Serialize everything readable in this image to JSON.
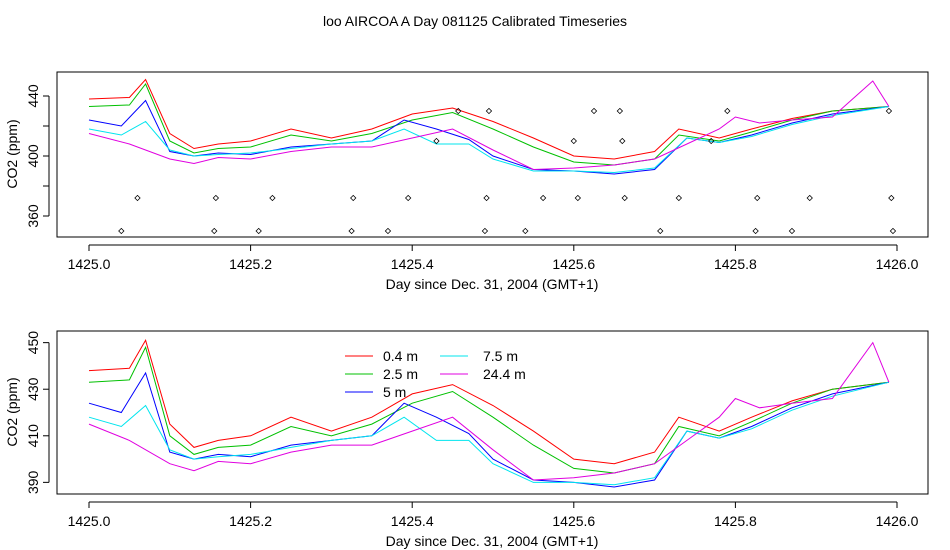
{
  "title": "loo AIRCOA A  Day 081125  Calibrated Timeseries",
  "series_colors": {
    "0.4 m": "#ff0000",
    "2.5 m": "#00c000",
    "5 m": "#0000ff",
    "7.5 m": "#00e5ee",
    "24.4 m": "#e000e0"
  },
  "chart_data": [
    {
      "type": "line",
      "xlabel": "Day since Dec. 31, 2004 (GMT+1)",
      "ylabel": "CO2 (ppm)",
      "xlim": [
        1425.0,
        1426.0
      ],
      "ylim": [
        346,
        456
      ],
      "x_ticks": [
        1425.0,
        1425.2,
        1425.4,
        1425.6,
        1425.8,
        1426.0
      ],
      "x_tick_labels": [
        "1425.0",
        "1425.2",
        "1425.4",
        "1425.6",
        "1425.8",
        "1426.0"
      ],
      "y_ticks": [
        360,
        380,
        400,
        420,
        440
      ],
      "y_tick_labels": [
        "360",
        "",
        "400",
        "",
        "440"
      ],
      "grid": false,
      "legend": "none",
      "series": [
        {
          "name": "0.4 m",
          "x": [
            1425.0,
            1425.05,
            1425.07,
            1425.1,
            1425.13,
            1425.16,
            1425.2,
            1425.25,
            1425.3,
            1425.35,
            1425.4,
            1425.45,
            1425.5,
            1425.55,
            1425.6,
            1425.65,
            1425.7,
            1425.73,
            1425.78,
            1425.82,
            1425.87,
            1425.92,
            1425.99
          ],
          "y": [
            438,
            439,
            451,
            415,
            405,
            408,
            410,
            418,
            412,
            418,
            428,
            432,
            423,
            412,
            400,
            398,
            403,
            418,
            412,
            418,
            425,
            430,
            433
          ]
        },
        {
          "name": "2.5 m",
          "x": [
            1425.0,
            1425.05,
            1425.07,
            1425.1,
            1425.13,
            1425.16,
            1425.2,
            1425.25,
            1425.3,
            1425.35,
            1425.4,
            1425.45,
            1425.5,
            1425.55,
            1425.6,
            1425.65,
            1425.7,
            1425.73,
            1425.78,
            1425.82,
            1425.87,
            1425.92,
            1425.99
          ],
          "y": [
            433,
            434,
            448,
            410,
            402,
            405,
            406,
            414,
            410,
            415,
            424,
            429,
            418,
            406,
            396,
            394,
            398,
            414,
            410,
            416,
            424,
            430,
            433
          ]
        },
        {
          "name": "5 m",
          "x": [
            1425.0,
            1425.04,
            1425.07,
            1425.1,
            1425.13,
            1425.16,
            1425.2,
            1425.25,
            1425.3,
            1425.35,
            1425.39,
            1425.43,
            1425.47,
            1425.5,
            1425.55,
            1425.6,
            1425.65,
            1425.7,
            1425.74,
            1425.78,
            1425.82,
            1425.87,
            1425.92,
            1425.99
          ],
          "y": [
            424,
            420,
            437,
            403,
            400,
            402,
            401,
            406,
            408,
            410,
            424,
            418,
            411,
            400,
            391,
            390,
            388,
            391,
            412,
            409,
            414,
            422,
            428,
            433
          ]
        },
        {
          "name": "7.5 m",
          "x": [
            1425.0,
            1425.04,
            1425.07,
            1425.1,
            1425.13,
            1425.16,
            1425.2,
            1425.25,
            1425.3,
            1425.35,
            1425.39,
            1425.43,
            1425.47,
            1425.5,
            1425.55,
            1425.6,
            1425.65,
            1425.7,
            1425.74,
            1425.78,
            1425.82,
            1425.87,
            1425.92,
            1425.99
          ],
          "y": [
            418,
            414,
            423,
            404,
            400,
            401,
            402,
            405,
            408,
            410,
            418,
            408,
            408,
            398,
            390,
            390,
            389,
            392,
            412,
            409,
            413,
            421,
            427,
            433
          ]
        },
        {
          "name": "24.4 m",
          "x": [
            1425.0,
            1425.05,
            1425.1,
            1425.13,
            1425.16,
            1425.2,
            1425.25,
            1425.3,
            1425.35,
            1425.4,
            1425.45,
            1425.5,
            1425.55,
            1425.6,
            1425.65,
            1425.7,
            1425.74,
            1425.78,
            1425.8,
            1425.83,
            1425.87,
            1425.92,
            1425.97,
            1425.99
          ],
          "y": [
            415,
            408,
            398,
            395,
            399,
            398,
            403,
            406,
            406,
            412,
            418,
            404,
            391,
            392,
            394,
            398,
            408,
            418,
            426,
            422,
            424,
            426,
            450,
            433
          ]
        }
      ],
      "markers": {
        "x": [
          1425.04,
          1425.06,
          1425.155,
          1425.157,
          1425.21,
          1425.227,
          1425.325,
          1425.327,
          1425.37,
          1425.395,
          1425.43,
          1425.457,
          1425.49,
          1425.492,
          1425.495,
          1425.54,
          1425.562,
          1425.6,
          1425.605,
          1425.625,
          1425.657,
          1425.66,
          1425.663,
          1425.707,
          1425.73,
          1425.77,
          1425.79,
          1425.825,
          1425.827,
          1425.87,
          1425.892,
          1425.99,
          1425.993,
          1425.995
        ],
        "y": [
          350,
          372,
          350,
          372,
          350,
          372,
          350,
          372,
          350,
          372,
          410,
          430,
          350,
          372,
          430,
          350,
          372,
          410,
          372,
          430,
          430,
          410,
          372,
          350,
          372,
          410,
          430,
          350,
          372,
          350,
          372,
          430,
          372,
          350
        ]
      }
    },
    {
      "type": "line",
      "xlabel": "Day since Dec. 31, 2004 (GMT+1)",
      "ylabel": "CO2 (ppm)",
      "xlim": [
        1425.0,
        1426.0
      ],
      "ylim": [
        385,
        455
      ],
      "x_ticks": [
        1425.0,
        1425.2,
        1425.4,
        1425.6,
        1425.8,
        1426.0
      ],
      "x_tick_labels": [
        "1425.0",
        "1425.2",
        "1425.4",
        "1425.6",
        "1425.8",
        "1426.0"
      ],
      "y_ticks": [
        390,
        410,
        430,
        450
      ],
      "y_tick_labels": [
        "390",
        "410",
        "430",
        "450"
      ],
      "grid": false,
      "legend": "top-center",
      "legend_entries": [
        "0.4 m",
        "2.5 m",
        "5 m",
        "7.5 m",
        "24.4 m"
      ],
      "series": [
        {
          "name": "0.4 m",
          "x": [
            1425.0,
            1425.05,
            1425.07,
            1425.1,
            1425.13,
            1425.16,
            1425.2,
            1425.25,
            1425.3,
            1425.35,
            1425.4,
            1425.45,
            1425.5,
            1425.55,
            1425.6,
            1425.65,
            1425.7,
            1425.73,
            1425.78,
            1425.82,
            1425.87,
            1425.92,
            1425.99
          ],
          "y": [
            438,
            439,
            451,
            415,
            405,
            408,
            410,
            418,
            412,
            418,
            428,
            432,
            423,
            412,
            400,
            398,
            403,
            418,
            412,
            418,
            425,
            430,
            433
          ]
        },
        {
          "name": "2.5 m",
          "x": [
            1425.0,
            1425.05,
            1425.07,
            1425.1,
            1425.13,
            1425.16,
            1425.2,
            1425.25,
            1425.3,
            1425.35,
            1425.4,
            1425.45,
            1425.5,
            1425.55,
            1425.6,
            1425.65,
            1425.7,
            1425.73,
            1425.78,
            1425.82,
            1425.87,
            1425.92,
            1425.99
          ],
          "y": [
            433,
            434,
            448,
            410,
            402,
            405,
            406,
            414,
            410,
            415,
            424,
            429,
            418,
            406,
            396,
            394,
            398,
            414,
            410,
            416,
            424,
            430,
            433
          ]
        },
        {
          "name": "5 m",
          "x": [
            1425.0,
            1425.04,
            1425.07,
            1425.1,
            1425.13,
            1425.16,
            1425.2,
            1425.25,
            1425.3,
            1425.35,
            1425.39,
            1425.43,
            1425.47,
            1425.5,
            1425.55,
            1425.6,
            1425.65,
            1425.7,
            1425.74,
            1425.78,
            1425.82,
            1425.87,
            1425.92,
            1425.99
          ],
          "y": [
            424,
            420,
            437,
            403,
            400,
            402,
            401,
            406,
            408,
            410,
            424,
            418,
            411,
            400,
            391,
            390,
            388,
            391,
            412,
            409,
            414,
            422,
            428,
            433
          ]
        },
        {
          "name": "7.5 m",
          "x": [
            1425.0,
            1425.04,
            1425.07,
            1425.1,
            1425.13,
            1425.16,
            1425.2,
            1425.25,
            1425.3,
            1425.35,
            1425.39,
            1425.43,
            1425.47,
            1425.5,
            1425.55,
            1425.6,
            1425.65,
            1425.7,
            1425.74,
            1425.78,
            1425.82,
            1425.87,
            1425.92,
            1425.99
          ],
          "y": [
            418,
            414,
            423,
            404,
            400,
            401,
            402,
            405,
            408,
            410,
            418,
            408,
            408,
            398,
            390,
            390,
            389,
            392,
            412,
            409,
            413,
            421,
            427,
            433
          ]
        },
        {
          "name": "24.4 m",
          "x": [
            1425.0,
            1425.05,
            1425.1,
            1425.13,
            1425.16,
            1425.2,
            1425.25,
            1425.3,
            1425.35,
            1425.4,
            1425.45,
            1425.5,
            1425.55,
            1425.6,
            1425.65,
            1425.7,
            1425.74,
            1425.78,
            1425.8,
            1425.83,
            1425.87,
            1425.92,
            1425.97,
            1425.99
          ],
          "y": [
            415,
            408,
            398,
            395,
            399,
            398,
            403,
            406,
            406,
            412,
            418,
            404,
            391,
            392,
            394,
            398,
            408,
            418,
            426,
            422,
            424,
            426,
            450,
            433
          ]
        }
      ]
    }
  ]
}
